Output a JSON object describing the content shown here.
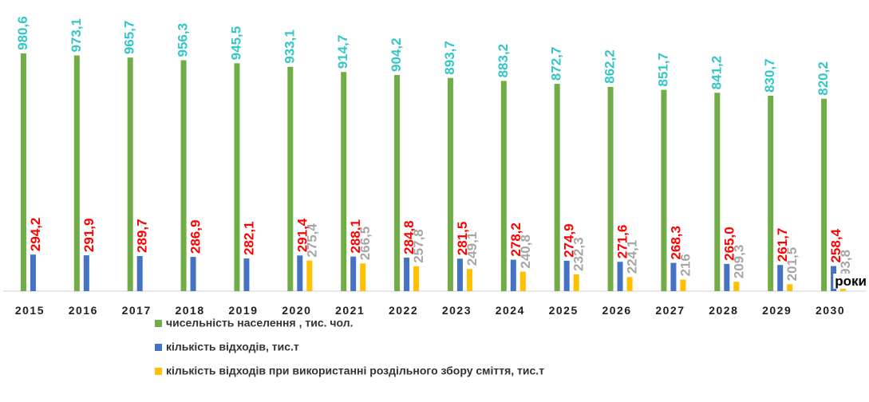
{
  "chart_data": {
    "type": "bar",
    "categories": [
      "2015",
      "2016",
      "2017",
      "2018",
      "2019",
      "2020",
      "2021",
      "2022",
      "2023",
      "2024",
      "2025",
      "2026",
      "2027",
      "2028",
      "2029",
      "2030"
    ],
    "series": [
      {
        "name": "чисельність населення , тис. чол.",
        "color": "#70ad47",
        "label_color": "#33c6c6",
        "values": [
          980.6,
          973.1,
          965.7,
          956.3,
          945.5,
          933.1,
          914.7,
          904.2,
          893.7,
          883.2,
          872.7,
          862.2,
          851.7,
          841.2,
          830.7,
          820.2
        ],
        "value_labels": [
          "980,6",
          "973,1",
          "965,7",
          "956,3",
          "945,5",
          "933,1",
          "914,7",
          "904,2",
          "893,7",
          "883,2",
          "872,7",
          "862,2",
          "851,7",
          "841,2",
          "830,7",
          "820,2"
        ]
      },
      {
        "name": "кількість відходів, тис.т",
        "color": "#4472c4",
        "label_color": "#ff0000",
        "axis": "y2",
        "values": [
          294.2,
          291.9,
          289.7,
          286.9,
          282.1,
          291.4,
          288.1,
          284.8,
          281.5,
          278.2,
          274.9,
          271.6,
          268.3,
          265.0,
          261.7,
          258.4
        ],
        "value_labels": [
          "294,2",
          "291,9",
          "289,7",
          "286,9",
          "282,1",
          "291,4",
          "288,1",
          "284,8",
          "281,5",
          "278,2",
          "274,9",
          "271,6",
          "268,3",
          "265,0",
          "261,7",
          "258,4"
        ]
      },
      {
        "name": "кількість відходів при використанні роздільного збору сміття, тис.т",
        "color": "#ffc000",
        "label_color": "#a6a6a6",
        "axis": "y2",
        "values": [
          null,
          null,
          null,
          null,
          null,
          275.4,
          266.5,
          257.8,
          249.1,
          240.8,
          232.3,
          224.1,
          216,
          209.3,
          201.5,
          193.8
        ],
        "value_labels": [
          null,
          null,
          null,
          null,
          null,
          "275,4",
          "266,5",
          "257,8",
          "249,1",
          "240,8",
          "232,3",
          "224,1",
          "216",
          "209,3",
          "201,5",
          "193,8"
        ]
      }
    ],
    "ylim": [
      140,
      1000
    ],
    "y2lim": [
      180,
      940
    ],
    "annotation": "роки"
  }
}
